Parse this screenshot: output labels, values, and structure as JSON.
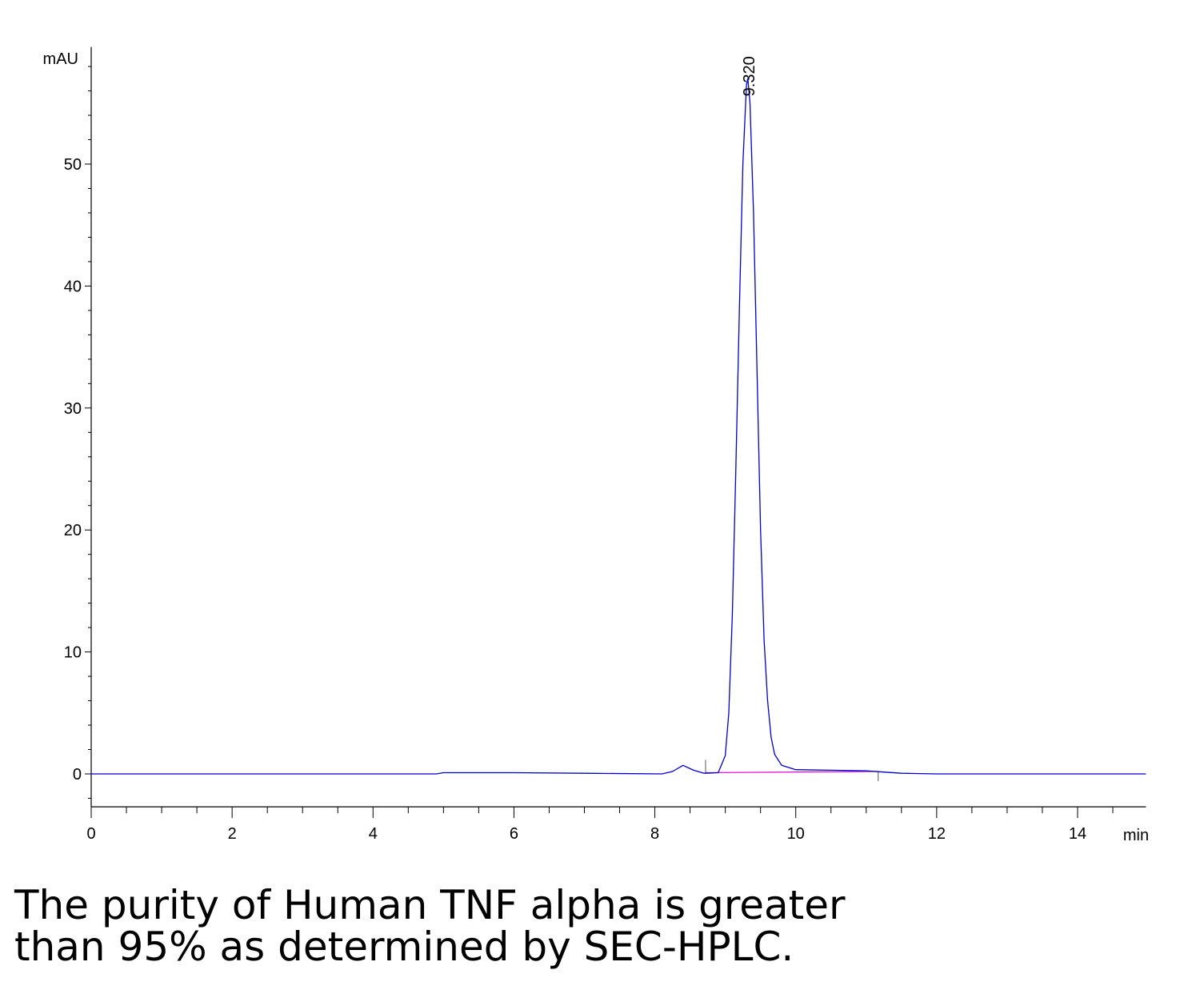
{
  "chart_data": {
    "type": "line",
    "title": "",
    "xlabel": "min",
    "ylabel": "mAU",
    "xlim": [
      0,
      14.97
    ],
    "ylim": [
      -2.7,
      59.6
    ],
    "x_ticks": [
      0,
      2,
      4,
      6,
      8,
      10,
      12,
      14
    ],
    "y_ticks": [
      0,
      10,
      20,
      30,
      40,
      50
    ],
    "grid": false,
    "series": [
      {
        "name": "signal",
        "color": "#0000cc",
        "points": [
          [
            0,
            0
          ],
          [
            4.9,
            0
          ],
          [
            5,
            0.1
          ],
          [
            6,
            0.1
          ],
          [
            7,
            0.05
          ],
          [
            8.1,
            0
          ],
          [
            8.25,
            0.2
          ],
          [
            8.4,
            0.7
          ],
          [
            8.55,
            0.3
          ],
          [
            8.7,
            0.05
          ],
          [
            8.9,
            0.1
          ],
          [
            9.0,
            1.5
          ],
          [
            9.05,
            5
          ],
          [
            9.1,
            13
          ],
          [
            9.15,
            25
          ],
          [
            9.2,
            38
          ],
          [
            9.25,
            50
          ],
          [
            9.3,
            56.5
          ],
          [
            9.32,
            57
          ],
          [
            9.35,
            55
          ],
          [
            9.4,
            46
          ],
          [
            9.45,
            33
          ],
          [
            9.5,
            20
          ],
          [
            9.55,
            11
          ],
          [
            9.6,
            6
          ],
          [
            9.65,
            3
          ],
          [
            9.7,
            1.6
          ],
          [
            9.8,
            0.7
          ],
          [
            10,
            0.35
          ],
          [
            10.5,
            0.3
          ],
          [
            11,
            0.25
          ],
          [
            11.5,
            0.05
          ],
          [
            12,
            0
          ],
          [
            14.97,
            0
          ]
        ]
      }
    ],
    "baseline": {
      "color": "#e000e0",
      "from": [
        8.72,
        0.1
      ],
      "to": [
        11.17,
        0.2
      ]
    },
    "annotations": [
      {
        "text": "9.320",
        "x": 9.32,
        "y": 57
      }
    ]
  },
  "caption": {
    "line1": "The purity of Human TNF alpha is greater",
    "line2": "than 95% as determined by SEC-HPLC."
  }
}
